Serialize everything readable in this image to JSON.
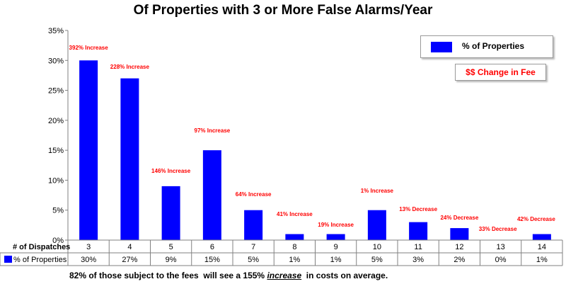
{
  "chart_data": {
    "type": "bar",
    "title": "Of Properties with 3 or More False Alarms/Year",
    "categories": [
      "3",
      "4",
      "5",
      "6",
      "7",
      "8",
      "9",
      "10",
      "11",
      "12",
      "13",
      "14"
    ],
    "series": [
      {
        "name": "% of Properties",
        "values": [
          30,
          27,
          9,
          15,
          5,
          1,
          1,
          5,
          3,
          2,
          0,
          1
        ],
        "color": "#0000ff"
      }
    ],
    "table_values": [
      "30%",
      "27%",
      "9%",
      "15%",
      "5%",
      "1%",
      "1%",
      "5%",
      "3%",
      "2%",
      "0%",
      "1%"
    ],
    "row_header": "# of Dispatches",
    "y_ticks": [
      "0%",
      "5%",
      "10%",
      "15%",
      "20%",
      "25%",
      "30%",
      "35%"
    ],
    "ylim": [
      0,
      35
    ],
    "grid": false,
    "legend_position": "top-right",
    "annotations": [
      "392% Increase",
      "228% Increase",
      "146% Increase",
      "97% Increase",
      "64% Increase",
      "41% Increase",
      "19% Increase",
      "1% Increase",
      "13% Decrease",
      "24% Decrease",
      "33% Decrease",
      "42% Decrease"
    ],
    "annotation_color": "#ff0000",
    "change_box_label": "$$ Change in Fee"
  },
  "footer": {
    "before": "82% of those subject to the fees  will see a 155% ",
    "emphasis": "increase",
    "after": "  in costs on average."
  }
}
